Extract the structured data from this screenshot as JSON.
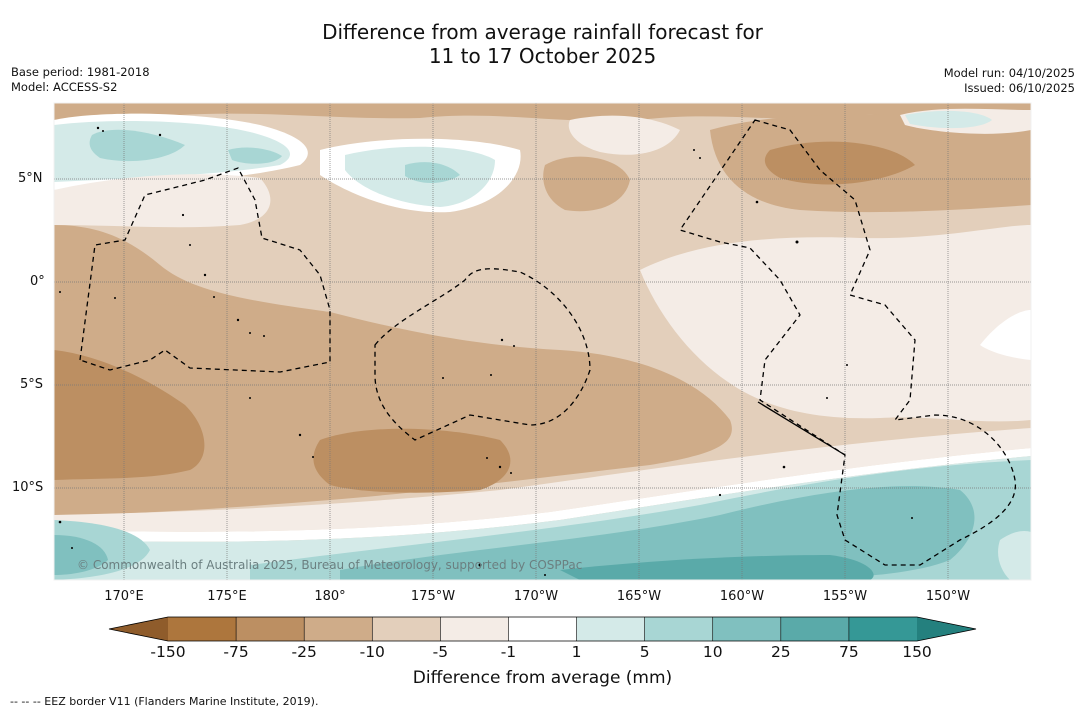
{
  "title": {
    "line1": "Difference from average rainfall forecast for",
    "line2": "11 to 17 October 2025"
  },
  "meta_left": {
    "base_period": "Base period: 1981-2018",
    "model": "Model: ACCESS-S2"
  },
  "meta_right": {
    "model_run": "Model run: 04/10/2025",
    "issued": "Issued: 06/10/2025"
  },
  "map": {
    "lat_labels": [
      "5°N",
      "0°",
      "5°S",
      "10°S"
    ],
    "lon_labels": [
      "170°E",
      "175°E",
      "180°",
      "175°W",
      "170°W",
      "165°W",
      "160°W",
      "155°W",
      "150°W"
    ],
    "copyright": "© Commonwealth of Australia 2025, Bureau of Meteorology, supported by COSPPac"
  },
  "colorbar": {
    "ticks": [
      "-150",
      "-75",
      "-25",
      "-10",
      "-5",
      "-1",
      "1",
      "5",
      "10",
      "25",
      "75",
      "150"
    ],
    "colors": [
      "#ad763d",
      "#bc8f62",
      "#cfac89",
      "#e3cfbb",
      "#f4ece6",
      "#ffffff",
      "#d4eae8",
      "#a8d6d4",
      "#80c0bf",
      "#5aaaa9",
      "#359896"
    ],
    "under_color": "#8f5c2b",
    "over_color": "#24807e",
    "title": "Difference from average (mm)"
  },
  "footnote": "-- -- -- EEZ border V11 (Flanders Marine Institute, 2019)."
}
